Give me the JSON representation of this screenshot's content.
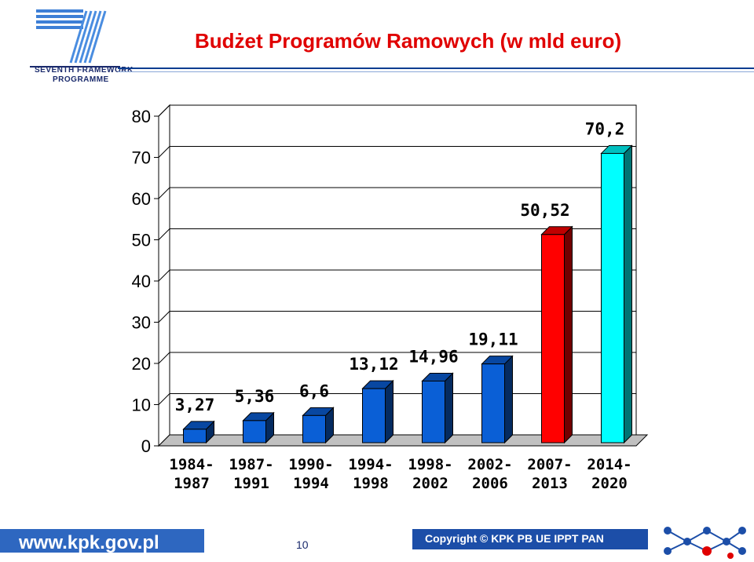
{
  "slide": {
    "title": "Budżet Programów Ramowych (w mld euro)",
    "logo_line1": "SEVENTH FRAMEWORK",
    "logo_line2": "PROGRAMME",
    "footer_url": "www.kpk.gov.pl",
    "page_number": "10",
    "copyright": "Copyright © KPK PB UE IPPT PAN",
    "colors": {
      "title": "#e00000",
      "bar_blue": "#0a5fd6",
      "bar_red": "#ff0000",
      "bar_cyan": "#00ffff"
    }
  },
  "chart_data": {
    "type": "bar",
    "categories": [
      [
        "1984-",
        "1987"
      ],
      [
        "1987-",
        "1991"
      ],
      [
        "1990-",
        "1994"
      ],
      [
        "1994-",
        "1998"
      ],
      [
        "1998-",
        "2002"
      ],
      [
        "2002-",
        "2006"
      ],
      [
        "2007-",
        "2013"
      ],
      [
        "2014-",
        "2020"
      ]
    ],
    "values": [
      3.27,
      5.36,
      6.6,
      13.12,
      14.96,
      19.11,
      50.52,
      70.2
    ],
    "data_labels": [
      "3,27",
      "5,36",
      "6,6",
      "13,12",
      "14,96",
      "19,11",
      "50,52",
      "70,2"
    ],
    "bar_colors": [
      "#0a5fd6",
      "#0a5fd6",
      "#0a5fd6",
      "#0a5fd6",
      "#0a5fd6",
      "#0a5fd6",
      "#ff0000",
      "#00ffff"
    ],
    "ylim": [
      0,
      80
    ],
    "yticks": [
      "0",
      "10",
      "20",
      "30",
      "40",
      "50",
      "60",
      "70",
      "80"
    ],
    "title": "",
    "xlabel": "",
    "ylabel": "",
    "grid": true,
    "style": "3d"
  }
}
